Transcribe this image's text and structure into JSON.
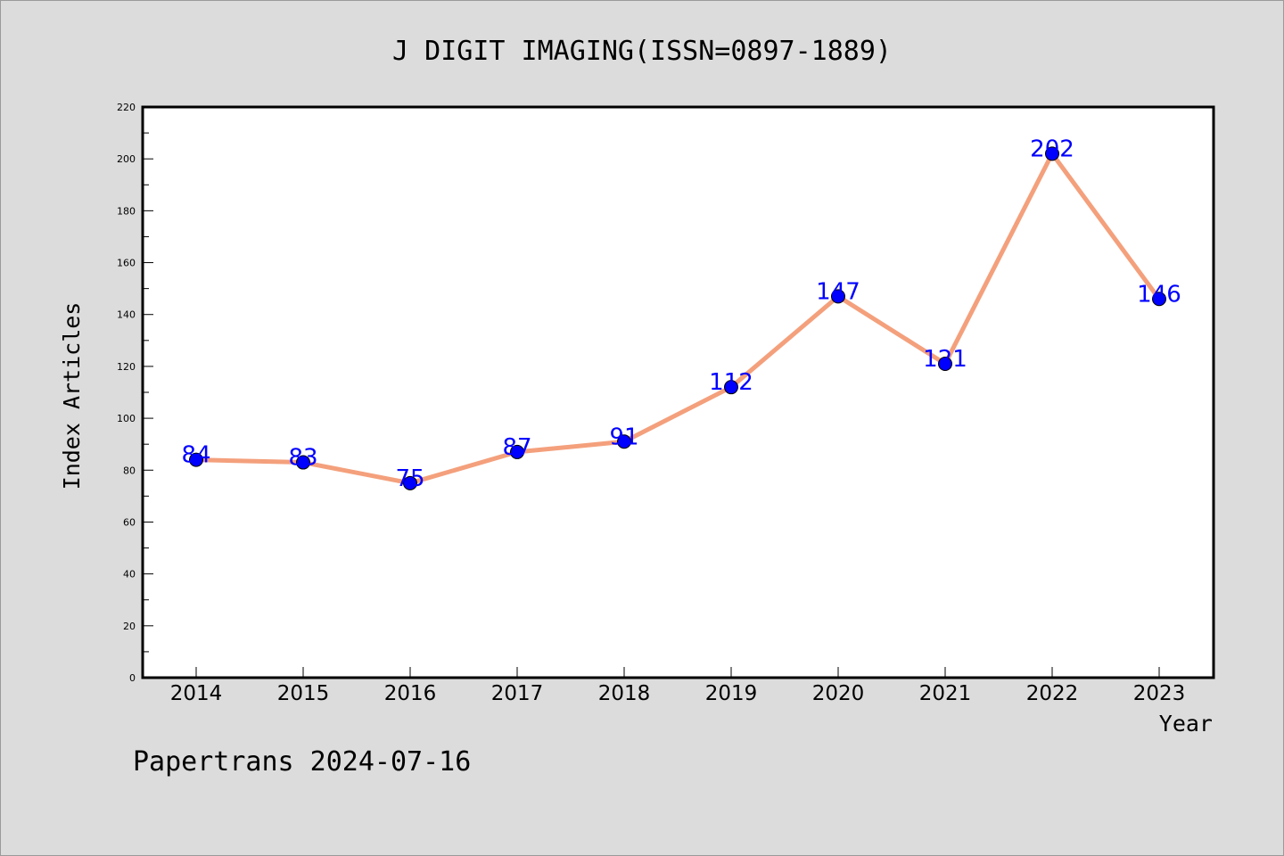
{
  "chart_data": {
    "type": "line",
    "title": "J DIGIT IMAGING(ISSN=0897-1889)",
    "xlabel": "Year",
    "ylabel": "Index Articles",
    "categories": [
      "2014",
      "2015",
      "2016",
      "2017",
      "2018",
      "2019",
      "2020",
      "2021",
      "2022",
      "2023"
    ],
    "series": [
      {
        "values": [
          84,
          83,
          75,
          87,
          91,
          112,
          147,
          121,
          202,
          146
        ]
      }
    ],
    "data_labels": [
      "84",
      "83",
      "75",
      "87",
      "91",
      "112",
      "147",
      "121",
      "202",
      "146"
    ],
    "yticks": [
      "0",
      "20",
      "40",
      "60",
      "80",
      "100",
      "120",
      "140",
      "160",
      "180",
      "200",
      "220"
    ],
    "ylim": [
      0,
      220
    ],
    "grid": false,
    "legend": "none",
    "colors": {
      "line": "#f4a07c",
      "marker": "#0000ff",
      "label": "#0000ff",
      "background": "#dcdcdc",
      "plot_background": "#ffffff"
    }
  },
  "footer": {
    "text": "Papertrans 2024-07-16"
  }
}
